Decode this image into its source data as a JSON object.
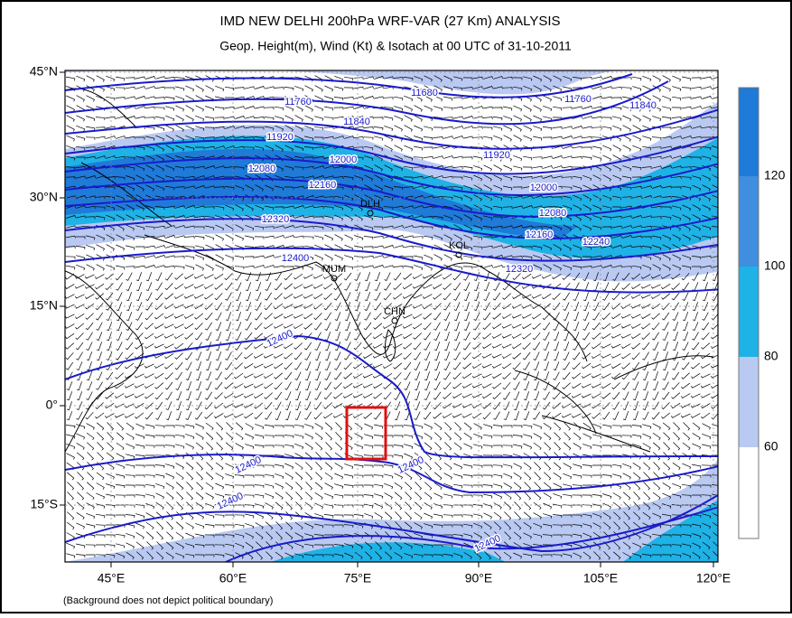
{
  "header": {
    "title": "IMD NEW DELHI 200hPa WRF-VAR (27 Km) ANALYSIS",
    "subtitle": "Geop. Height(m), Wind (Kt) & Isotach  at 00 UTC of 31-10-2011"
  },
  "map": {
    "lat_labels": [
      "45°N",
      "30°N",
      "15°N",
      "0°",
      "15°S"
    ],
    "lon_labels": [
      "45°E",
      "60°E",
      "75°E",
      "90°E",
      "105°E",
      "120°E"
    ],
    "stations": [
      "DLH",
      "MUM",
      "KOL",
      "CHN"
    ],
    "contour_labels": [
      "11680",
      "11760",
      "11760",
      "11840",
      "11840",
      "11920",
      "11920",
      "12000",
      "12000",
      "12080",
      "12080",
      "12160",
      "12160",
      "12240",
      "12320",
      "12320",
      "12400",
      "12400",
      "12400",
      "12400",
      "12400",
      "12400"
    ]
  },
  "colorbar": {
    "labels": [
      "120",
      "100",
      "80",
      "60"
    ]
  },
  "footnote": "(Background does not depict political boundary)"
}
